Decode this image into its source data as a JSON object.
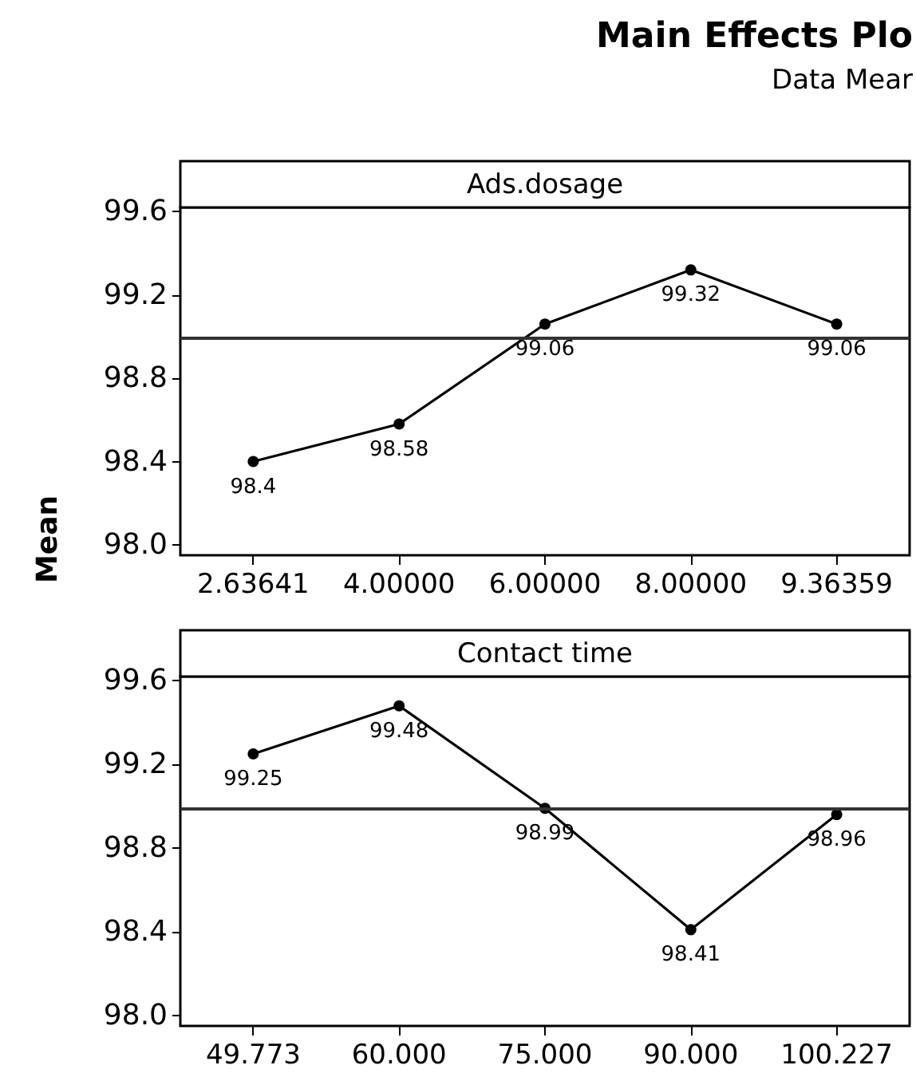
{
  "chart_data": [
    {
      "type": "line",
      "title": "Ads.dosage",
      "ylabel": "Mean",
      "annotations": [
        "Main Effects Plo",
        "Data Mear"
      ],
      "categories": [
        "2.63641",
        "4.00000",
        "6.00000",
        "8.00000",
        "9.36359"
      ],
      "series": [
        {
          "color": "#000000",
          "values": [
            98.4,
            98.58,
            99.06,
            99.32,
            99.06
          ]
        }
      ],
      "ylim": [
        97.95,
        99.62
      ],
      "yticks": [
        {
          "value": 98,
          "label": "98.0"
        },
        {
          "value": 98.4,
          "label": "98.4"
        },
        {
          "value": 98.8,
          "label": "98.8"
        },
        {
          "value": 99.2,
          "label": "99.2"
        },
        {
          "value": 99.6,
          "label": "99.6"
        }
      ],
      "ref_lines": [
        {
          "axis": "y",
          "value": 98.99,
          "label": null,
          "color": "#333333"
        }
      ],
      "data_labels": true,
      "marker": "circle",
      "line_style": "solid"
    },
    {
      "type": "line",
      "title": "Contact time",
      "categories": [
        "49.773",
        "60.000",
        "75.000",
        "90.000",
        "100.227"
      ],
      "series": [
        {
          "color": "#000000",
          "values": [
            99.25,
            99.48,
            98.99,
            98.41,
            98.96
          ]
        }
      ],
      "ylim": [
        97.95,
        99.62
      ],
      "yticks": [
        {
          "value": 98,
          "label": "98.0"
        },
        {
          "value": 98.4,
          "label": "98.4"
        },
        {
          "value": 98.8,
          "label": "98.8"
        },
        {
          "value": 99.2,
          "label": "99.2"
        },
        {
          "value": 99.6,
          "label": "99.6"
        }
      ],
      "ref_lines": [
        {
          "axis": "y",
          "value": 98.99,
          "label": null,
          "color": "#333333"
        }
      ],
      "data_labels": true,
      "marker": "circle",
      "line_style": "solid"
    }
  ]
}
